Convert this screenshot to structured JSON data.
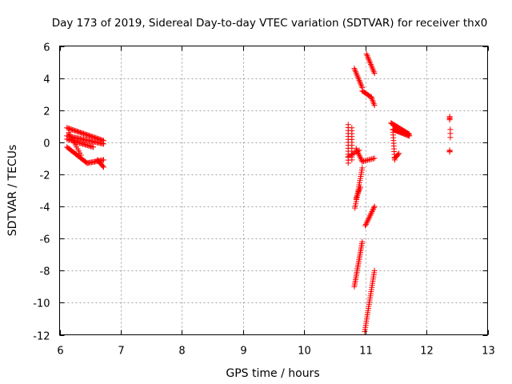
{
  "chart_data": {
    "type": "scatter",
    "title": "Day 173 of 2019, Sidereal Day-to-day VTEC variation (SDTVAR) for receiver thx0",
    "xlabel": "GPS time / hours",
    "ylabel": "SDTVAR / TECUs",
    "xlim": [
      6,
      13
    ],
    "ylim": [
      -12,
      6
    ],
    "x_ticks": [
      6,
      7,
      8,
      9,
      10,
      11,
      12,
      13
    ],
    "y_ticks": [
      -12,
      -10,
      -8,
      -6,
      -4,
      -2,
      0,
      2,
      4,
      6
    ],
    "x_tick_labels": [
      "6",
      "7",
      "8",
      "9",
      "10",
      "11",
      "12",
      "13"
    ],
    "y_tick_labels": [
      "-12",
      "-10",
      "-8",
      "-6",
      "-4",
      "-2",
      "0",
      "2",
      "4",
      "6"
    ],
    "grid": true,
    "marker": "+",
    "marker_color": "#ff0000",
    "series": [
      {
        "name": "SDTVAR",
        "segments": [
          {
            "x0": 6.12,
            "x1": 6.72,
            "y0": 0.9,
            "y1": 0.1,
            "n": 34
          },
          {
            "x0": 6.12,
            "x1": 6.72,
            "y0": 0.4,
            "y1": -0.1,
            "n": 34
          },
          {
            "x0": 6.12,
            "x1": 6.55,
            "y0": 0.2,
            "y1": -0.3,
            "n": 24
          },
          {
            "x0": 6.12,
            "x1": 6.45,
            "y0": -0.3,
            "y1": -1.3,
            "n": 22
          },
          {
            "x0": 6.45,
            "x1": 6.72,
            "y0": -1.3,
            "y1": -1.1,
            "n": 16
          },
          {
            "x0": 6.62,
            "x1": 6.72,
            "y0": -1.1,
            "y1": -1.55,
            "n": 8
          },
          {
            "x0": 6.15,
            "x1": 6.35,
            "y0": 0.6,
            "y1": -0.8,
            "n": 12
          },
          {
            "x0": 10.72,
            "x1": 10.72,
            "y0": 1.1,
            "y1": -1.3,
            "n": 14
          },
          {
            "x0": 10.78,
            "x1": 10.78,
            "y0": 0.9,
            "y1": -1.1,
            "n": 12
          },
          {
            "x0": 10.72,
            "x1": 10.9,
            "y0": -0.9,
            "y1": -0.5,
            "n": 8
          },
          {
            "x0": 10.82,
            "x1": 10.95,
            "y0": 4.6,
            "y1": 3.4,
            "n": 14
          },
          {
            "x0": 10.95,
            "x1": 11.1,
            "y0": 3.2,
            "y1": 2.8,
            "n": 10
          },
          {
            "x0": 11.02,
            "x1": 11.15,
            "y0": 5.5,
            "y1": 4.3,
            "n": 14
          },
          {
            "x0": 11.1,
            "x1": 11.15,
            "y0": 2.8,
            "y1": 2.3,
            "n": 6
          },
          {
            "x0": 10.85,
            "x1": 10.95,
            "y0": -0.4,
            "y1": -1.2,
            "n": 10
          },
          {
            "x0": 10.95,
            "x1": 11.15,
            "y0": -1.2,
            "y1": -1.0,
            "n": 10
          },
          {
            "x0": 10.83,
            "x1": 10.95,
            "y0": -4.1,
            "y1": -1.6,
            "n": 20
          },
          {
            "x0": 10.85,
            "x1": 10.92,
            "y0": -3.5,
            "y1": -2.8,
            "n": 8
          },
          {
            "x0": 11.0,
            "x1": 11.15,
            "y0": -5.2,
            "y1": -4.0,
            "n": 16
          },
          {
            "x0": 10.82,
            "x1": 10.95,
            "y0": -9.0,
            "y1": -6.2,
            "n": 26
          },
          {
            "x0": 10.99,
            "x1": 11.15,
            "y0": -11.8,
            "y1": -8.0,
            "n": 30
          },
          {
            "x0": 11.42,
            "x1": 11.72,
            "y0": 1.2,
            "y1": 0.5,
            "n": 24
          },
          {
            "x0": 11.45,
            "x1": 11.72,
            "y0": 0.8,
            "y1": 0.4,
            "n": 22
          },
          {
            "x0": 11.45,
            "x1": 11.48,
            "y0": 0.8,
            "y1": -1.1,
            "n": 12
          },
          {
            "x0": 11.48,
            "x1": 11.55,
            "y0": -1.0,
            "y1": -0.7,
            "n": 6
          },
          {
            "x0": 12.38,
            "x1": 12.38,
            "y0": 1.6,
            "y1": 1.4,
            "n": 4
          },
          {
            "x0": 12.39,
            "x1": 12.39,
            "y0": 0.8,
            "y1": 0.3,
            "n": 3
          },
          {
            "x0": 12.38,
            "x1": 12.38,
            "y0": -0.5,
            "y1": -0.6,
            "n": 3
          }
        ]
      }
    ]
  }
}
